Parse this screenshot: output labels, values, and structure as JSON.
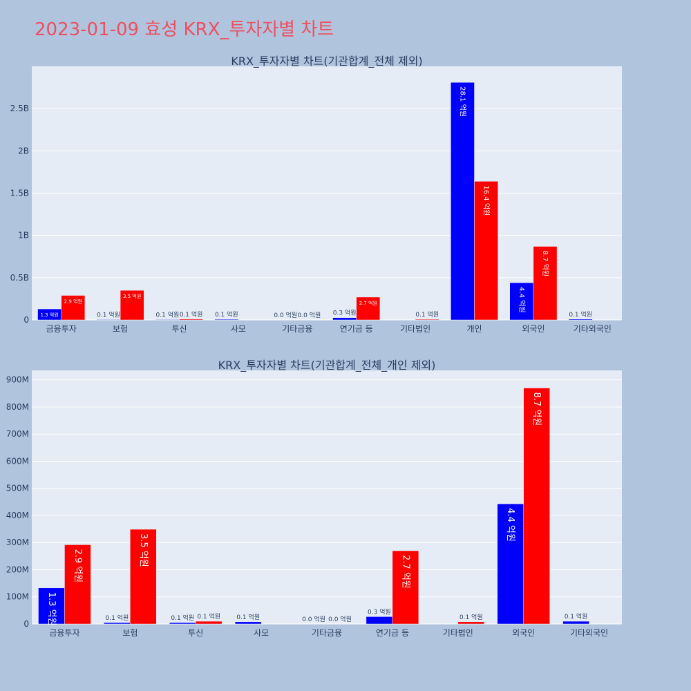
{
  "page": {
    "title": "2023-01-09 효성 KRX_투자자별 차트"
  },
  "colors": {
    "series1": "#0000ff",
    "series2": "#ff0000",
    "plot_bg": "#e5ecf6",
    "page_bg": "#b0c4de",
    "title": "#ef4f5f"
  },
  "chart_data": [
    {
      "type": "bar",
      "title": "KRX_투자자별 차트(기관합계_전체 제외)",
      "categories": [
        "금융투자",
        "보험",
        "투신",
        "사모",
        "기타금융",
        "연기금 등",
        "기타법인",
        "개인",
        "외국인",
        "기타외국인"
      ],
      "series": [
        {
          "values": [
            130000000,
            5000000,
            5000000,
            8000000,
            0,
            27000000,
            0,
            2810000000,
            440000000,
            10000000
          ],
          "labels": [
            "1.3 억원",
            "0.1 억원",
            "0.1 억원",
            "0.1 억원",
            "0.0 억원",
            "0.3 억원",
            "",
            "28.1 억원",
            "4.4 억원",
            "0.1 억원"
          ]
        },
        {
          "values": [
            290000000,
            350000000,
            10000000,
            0,
            0,
            270000000,
            8000000,
            1640000000,
            870000000,
            0
          ],
          "labels": [
            "2.9 억원",
            "3.5 억원",
            "0.1 억원",
            "",
            "0.0 억원",
            "2.7 억원",
            "0.1 억원",
            "16.4 억원",
            "8.7 억원",
            ""
          ]
        }
      ],
      "ylim": [
        0,
        3000000000
      ],
      "yticks": [
        0,
        500000000,
        1000000000,
        1500000000,
        2000000000,
        2500000000
      ],
      "yticklabels": [
        "0",
        "0.5B",
        "1B",
        "1.5B",
        "2B",
        "2.5B"
      ],
      "grid": true
    },
    {
      "type": "bar",
      "title": "KRX_투자자별 차트(기관합계_전체_개인 제외)",
      "categories": [
        "금융투자",
        "보험",
        "투신",
        "사모",
        "기타금융",
        "연기금 등",
        "기타법인",
        "외국인",
        "기타외국인"
      ],
      "series": [
        {
          "values": [
            133000000,
            5000000,
            5000000,
            8000000,
            0,
            27000000,
            0,
            443000000,
            10000000
          ],
          "labels": [
            "1.3 억원",
            "0.1 억원",
            "0.1 억원",
            "0.1 억원",
            "0.0 억원",
            "0.3 억원",
            "",
            "4.4 억원",
            "0.1 억원"
          ]
        },
        {
          "values": [
            292000000,
            349000000,
            10000000,
            0,
            0,
            270000000,
            8000000,
            870000000,
            0
          ],
          "labels": [
            "2.9 억원",
            "3.5 억원",
            "0.1 억원",
            "",
            "0.0 억원",
            "2.7 억원",
            "0.1 억원",
            "8.7 억원",
            ""
          ]
        }
      ],
      "ylim": [
        0,
        935000000
      ],
      "yticks": [
        0,
        100000000,
        200000000,
        300000000,
        400000000,
        500000000,
        600000000,
        700000000,
        800000000,
        900000000
      ],
      "yticklabels": [
        "0",
        "100M",
        "200M",
        "300M",
        "400M",
        "500M",
        "600M",
        "700M",
        "800M",
        "900M"
      ],
      "grid": true
    }
  ]
}
